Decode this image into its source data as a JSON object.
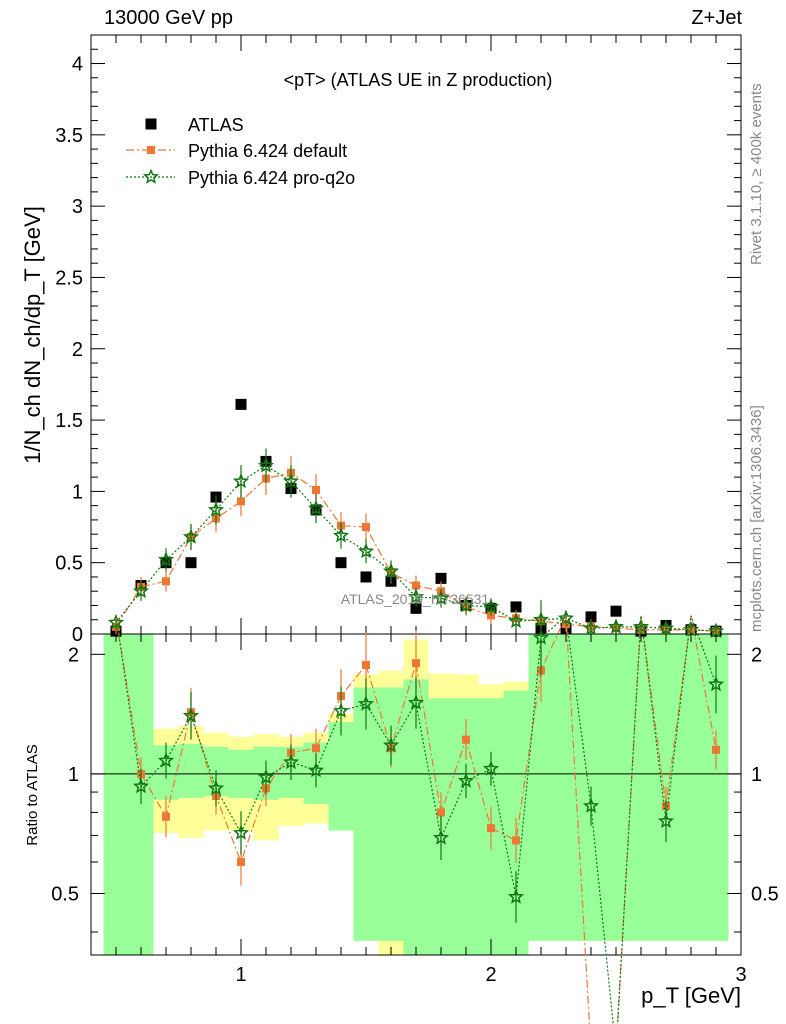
{
  "header": {
    "left": "13000 GeV pp",
    "right": "Z+Jet",
    "side_top": "Rivet 3.1.10, ≥ 400k events",
    "side_bottom": "mcplots.cern.ch [arXiv:1306.3436]"
  },
  "chart_data": {
    "type": "scatter",
    "title": "<pT> (ATLAS UE in Z production)",
    "watermark": "ATLAS_2019_I1736531",
    "x": [
      0.5,
      0.6,
      0.7,
      0.8,
      0.9,
      1.0,
      1.1,
      1.2,
      1.3,
      1.4,
      1.5,
      1.6,
      1.7,
      1.8,
      1.9,
      2.0,
      2.1,
      2.2,
      2.3,
      2.4,
      2.5,
      2.6,
      2.7,
      2.8,
      2.9
    ],
    "main": {
      "ylabel": "1/N_ch dN_ch/dp_T [GeV]",
      "ylim": [
        0,
        4.2
      ],
      "yticks": [
        "0",
        "0.5",
        "1",
        "1.5",
        "2",
        "2.5",
        "3",
        "3.5",
        "4"
      ]
    },
    "ratio": {
      "ylabel": "Ratio to ATLAS",
      "ylim": [
        0.35,
        2.25
      ],
      "yticks": [
        "0.5",
        "1",
        "2"
      ],
      "xlabel": "p_T [GeV]",
      "xlim": [
        0.4,
        3.0
      ],
      "xticks": [
        "1",
        "2",
        "3"
      ]
    },
    "series": [
      {
        "name": "ATLAS",
        "color": "#000000",
        "marker": "square",
        "values": [
          0.02,
          0.34,
          0.5,
          0.5,
          0.96,
          1.61,
          1.21,
          1.02,
          0.87,
          0.5,
          0.4,
          0.37,
          0.18,
          0.39,
          0.2,
          0.18,
          0.19,
          0.04,
          0.04,
          0.12,
          0.16,
          0.02,
          0.06,
          0.03,
          0.02
        ]
      },
      {
        "name": "Pythia 6.424 default",
        "color": "#ee7733",
        "marker": "square-small",
        "line": "dashdot",
        "values": [
          0.05,
          0.33,
          0.37,
          0.68,
          0.81,
          0.93,
          1.09,
          1.13,
          1.01,
          0.76,
          0.75,
          0.43,
          0.34,
          0.3,
          0.19,
          0.13,
          0.11,
          0.09,
          0.07,
          0.05,
          0.04,
          0.03,
          0.03,
          0.03,
          0.02
        ]
      },
      {
        "name": "Pythia 6.424 pro-q2o",
        "color": "#117711",
        "marker": "star",
        "line": "dotted",
        "values": [
          0.08,
          0.3,
          0.52,
          0.68,
          0.87,
          1.07,
          1.18,
          1.07,
          0.88,
          0.69,
          0.58,
          0.44,
          0.26,
          0.25,
          0.2,
          0.19,
          0.09,
          0.1,
          0.11,
          0.04,
          0.05,
          0.05,
          0.04,
          0.03,
          0.02
        ]
      }
    ],
    "ratio_series": [
      {
        "name": "Pythia 6.424 default",
        "values": [
          2.5,
          1.0,
          0.78,
          1.43,
          0.88,
          0.6,
          0.92,
          1.13,
          1.16,
          1.57,
          1.88,
          1.16,
          1.9,
          0.8,
          1.22,
          0.73,
          0.68,
          1.82,
          2.5,
          0.2,
          0.2,
          2.5,
          0.83,
          2.5,
          1.15
        ]
      },
      {
        "name": "Pythia 6.424 pro-q2o",
        "values": [
          2.5,
          0.93,
          1.08,
          1.4,
          0.92,
          0.71,
          0.98,
          1.07,
          1.02,
          1.44,
          1.5,
          1.18,
          1.51,
          0.69,
          0.96,
          1.03,
          0.49,
          2.2,
          2.5,
          0.83,
          0.2,
          2.5,
          0.76,
          2.5,
          1.68
        ]
      }
    ],
    "ratio_bands": {
      "green": {
        "color": "#99ff99",
        "lo": [
          0.2,
          0.2,
          0.86,
          0.87,
          0.88,
          0.87,
          0.86,
          0.87,
          0.84,
          0.72,
          0.38,
          0.38,
          0.2,
          0.2,
          0.2,
          0.2,
          0.2,
          0.38,
          0.38,
          0.38,
          0.38,
          0.38,
          0.38,
          0.38,
          0.38
        ],
        "hi": [
          2.5,
          2.5,
          1.18,
          1.19,
          1.17,
          1.15,
          1.17,
          1.17,
          1.2,
          1.35,
          1.65,
          1.65,
          1.73,
          1.55,
          1.55,
          1.55,
          1.62,
          2.5,
          2.5,
          2.5,
          2.5,
          2.5,
          2.5,
          2.5,
          2.5
        ]
      },
      "yellow": {
        "color": "#ffff99",
        "lo": [
          0.2,
          0.58,
          0.71,
          0.69,
          0.72,
          0.72,
          0.68,
          0.74,
          0.75,
          0.74,
          0.64,
          0.2,
          0.38,
          0.38,
          0.38,
          0.38,
          0.2,
          0.38,
          0.38,
          0.38,
          0.38,
          0.38,
          0.38,
          0.38,
          0.38
        ],
        "hi": [
          2.5,
          2.5,
          1.3,
          1.32,
          1.27,
          1.24,
          1.26,
          1.24,
          1.27,
          1.42,
          1.78,
          1.82,
          2.18,
          1.79,
          1.78,
          1.68,
          1.71,
          2.5,
          2.5,
          1.8,
          2.5,
          2.5,
          2.5,
          2.5,
          2.5
        ]
      }
    }
  }
}
